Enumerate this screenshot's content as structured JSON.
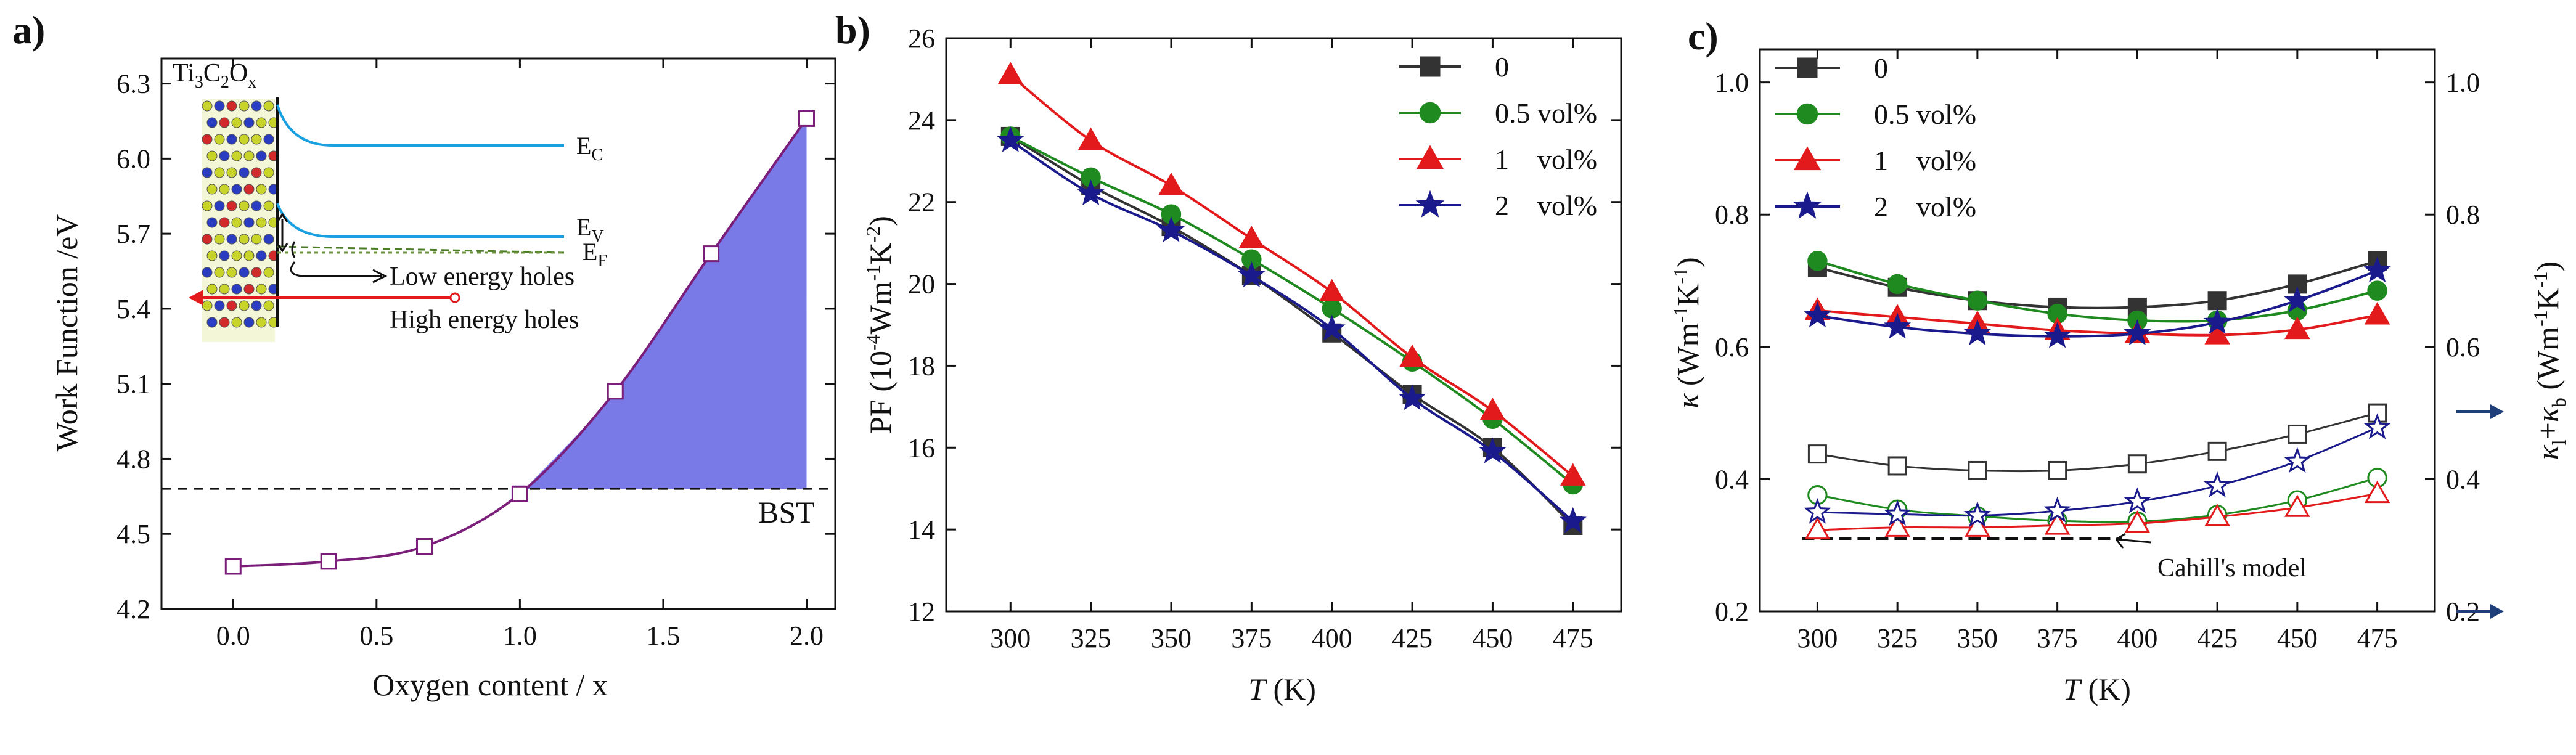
{
  "panel_labels": [
    "a)",
    "b)",
    "c)"
  ],
  "chart_data": [
    {
      "id": "a",
      "type": "line",
      "xlabel": "Oxygen content / x",
      "ylabel": "Work Function /eV",
      "xlim": [
        -0.25,
        2.1
      ],
      "ylim": [
        4.2,
        6.4
      ],
      "xticks": [
        "0.0",
        "0.5",
        "1.0",
        "1.5",
        "2.0"
      ],
      "yticks": [
        "4.2",
        "4.5",
        "4.8",
        "5.1",
        "5.4",
        "5.7",
        "6.0",
        "6.3"
      ],
      "x": [
        0,
        0.333,
        0.667,
        1.0,
        1.333,
        1.667,
        2.0
      ],
      "y": [
        4.37,
        4.39,
        4.45,
        4.66,
        5.07,
        5.62,
        6.16
      ],
      "reference_line": {
        "label": "BST",
        "y": 4.68
      },
      "shaded_above_reference": true,
      "line_color": "#7a1e7a",
      "fill_color": "#6a6ae6",
      "inset": {
        "title": "Ti3C2Ox",
        "labels": {
          "ec": "E",
          "ec_sub": "C",
          "ev": "E",
          "ev_sub": "V",
          "ef": "E",
          "ef_sub": "F"
        },
        "low_energy_label": "Low energy holes",
        "high_energy_label": "High energy holes"
      }
    },
    {
      "id": "b",
      "type": "line",
      "xlabel": "T (K)",
      "ylabel": "PF (10^-4 Wm^-1 K^-2)",
      "x": [
        300,
        325,
        350,
        375,
        400,
        425,
        450,
        475
      ],
      "xlim": [
        280,
        490
      ],
      "ylim": [
        12,
        26
      ],
      "xticks": [
        "300",
        "325",
        "350",
        "375",
        "400",
        "425",
        "450",
        "475"
      ],
      "yticks": [
        "12",
        "14",
        "16",
        "18",
        "20",
        "22",
        "24",
        "26"
      ],
      "legend_position": "top-right",
      "series": [
        {
          "name": "0",
          "marker": "square",
          "color": "#333333",
          "values": [
            23.6,
            22.4,
            21.4,
            20.2,
            18.8,
            17.3,
            16.0,
            14.1
          ]
        },
        {
          "name": "0.5 vol%",
          "marker": "circle",
          "color": "#1f8a1f",
          "values": [
            23.6,
            22.6,
            21.7,
            20.6,
            19.4,
            18.1,
            16.7,
            15.1
          ]
        },
        {
          "name": "1    vol%",
          "marker": "triangle",
          "color": "#e31a1c",
          "values": [
            25.1,
            23.5,
            22.4,
            21.1,
            19.8,
            18.2,
            16.9,
            15.3
          ]
        },
        {
          "name": "2    vol%",
          "marker": "star",
          "color": "#1a1a8c",
          "values": [
            23.5,
            22.2,
            21.3,
            20.2,
            18.9,
            17.2,
            15.9,
            14.2
          ]
        }
      ]
    },
    {
      "id": "c",
      "type": "line",
      "xlabel": "T (K)",
      "ylabel_left": "κ (Wm^-1 K^-1)",
      "ylabel_right": "κl + κb (Wm^-1 K^-1)",
      "x": [
        300,
        325,
        350,
        375,
        400,
        425,
        450,
        475
      ],
      "xlim": [
        282,
        493
      ],
      "ylim": [
        0.2,
        1.05
      ],
      "xticks": [
        "300",
        "325",
        "350",
        "375",
        "400",
        "425",
        "450",
        "475"
      ],
      "yticks": [
        "0.2",
        "0.4",
        "0.6",
        "0.8",
        "1.0"
      ],
      "legend_position": "top-left",
      "series": [
        {
          "name": "0",
          "marker": "square",
          "color": "#333333",
          "values": [
            0.72,
            0.69,
            0.67,
            0.66,
            0.66,
            0.67,
            0.695,
            0.73
          ]
        },
        {
          "name": "0.5 vol%",
          "marker": "circle",
          "color": "#1f8a1f",
          "values": [
            0.73,
            0.695,
            0.67,
            0.65,
            0.64,
            0.64,
            0.655,
            0.685
          ]
        },
        {
          "name": "1    vol%",
          "marker": "triangle",
          "color": "#e31a1c",
          "values": [
            0.655,
            0.645,
            0.635,
            0.625,
            0.62,
            0.618,
            0.626,
            0.648
          ]
        },
        {
          "name": "2    vol%",
          "marker": "star",
          "color": "#1a1a8c",
          "values": [
            0.647,
            0.63,
            0.62,
            0.616,
            0.62,
            0.637,
            0.67,
            0.715
          ]
        }
      ],
      "lattice_series": [
        {
          "marker": "square",
          "color": "#333333",
          "values": [
            0.438,
            0.42,
            0.413,
            0.413,
            0.423,
            0.442,
            0.468,
            0.5
          ]
        },
        {
          "marker": "circle",
          "color": "#1f8a1f",
          "values": [
            0.376,
            0.354,
            0.344,
            0.337,
            0.336,
            0.346,
            0.368,
            0.402
          ]
        },
        {
          "marker": "triangle",
          "color": "#e31a1c",
          "values": [
            0.323,
            0.327,
            0.327,
            0.33,
            0.333,
            0.343,
            0.357,
            0.378
          ]
        },
        {
          "marker": "star",
          "color": "#1a1a8c",
          "values": [
            0.35,
            0.347,
            0.345,
            0.352,
            0.366,
            0.39,
            0.427,
            0.478
          ]
        }
      ],
      "reference_line": {
        "label": "Cahill's model",
        "y": 0.31,
        "x_range": [
          300,
          400
        ]
      }
    }
  ]
}
